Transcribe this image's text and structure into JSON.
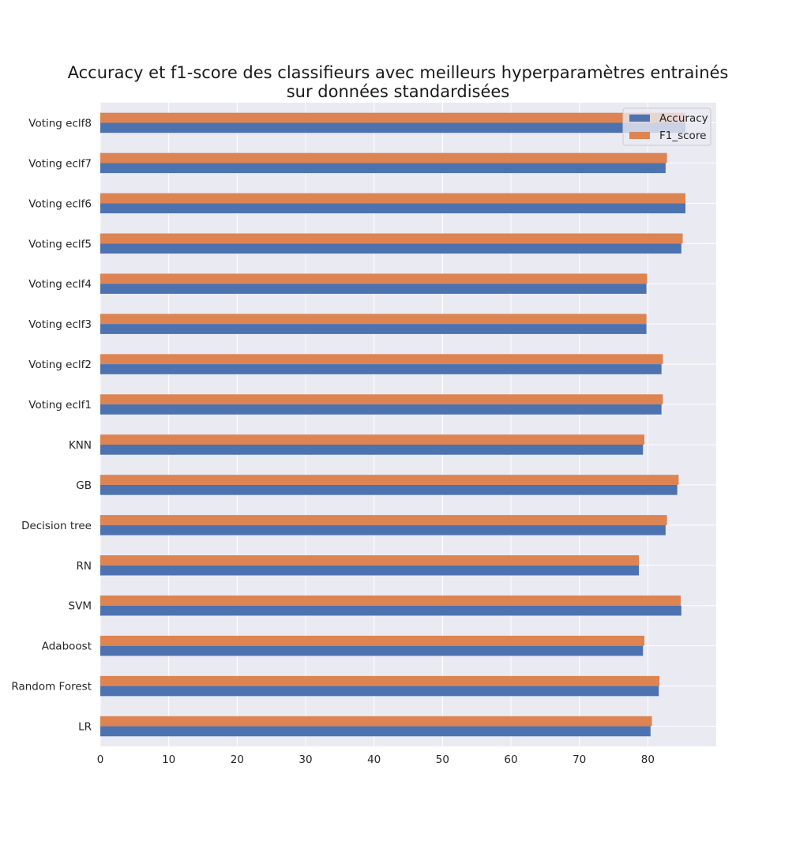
{
  "chart_data": {
    "type": "bar",
    "orientation": "horizontal",
    "title": "Accuracy et f1-score des classifieurs avec meilleurs hyperparamètres entrainés sur données standardisées",
    "title_lines": [
      "Accuracy et f1-score des classifieurs avec meilleurs hyperparamètres entrainés",
      "sur données standardisées"
    ],
    "categories": [
      "LR",
      "Random Forest",
      "Adaboost",
      "SVM",
      "RN",
      "Decision tree",
      "GB",
      "KNN",
      "Voting eclf1",
      "Voting eclf2",
      "Voting eclf3",
      "Voting eclf4",
      "Voting eclf5",
      "Voting eclf6",
      "Voting eclf7",
      "Voting eclf8"
    ],
    "series": [
      {
        "name": "Accuracy",
        "color": "#4c72b0",
        "values": [
          80.4,
          81.6,
          79.3,
          84.9,
          78.7,
          82.6,
          84.3,
          79.3,
          82.0,
          82.0,
          79.8,
          79.8,
          84.9,
          85.5,
          82.6,
          85.5
        ]
      },
      {
        "name": "F1_score",
        "color": "#dd8452",
        "values": [
          80.6,
          81.7,
          79.5,
          84.8,
          78.7,
          82.8,
          84.5,
          79.5,
          82.2,
          82.2,
          79.8,
          79.9,
          85.1,
          85.5,
          82.8,
          85.5
        ]
      }
    ],
    "xlim": [
      0,
      90
    ],
    "xticks": [
      0,
      10,
      20,
      30,
      40,
      50,
      60,
      70,
      80
    ],
    "xlabel": "",
    "ylabel": "",
    "grid": true,
    "legend_position": "top-right",
    "colors": {
      "background": "#eaeaf2",
      "grid": "#ffffff"
    }
  }
}
